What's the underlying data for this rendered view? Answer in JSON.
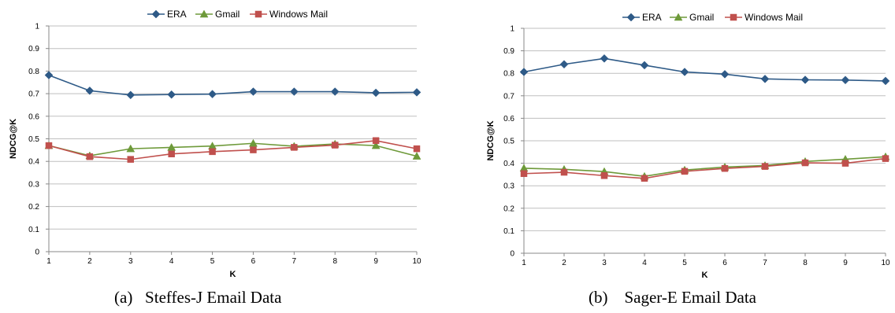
{
  "chart_data": [
    {
      "type": "line",
      "caption": "(a)   Steffes-J Email Data",
      "xlabel": "K",
      "ylabel": "NDCG@K",
      "categories": [
        "1",
        "2",
        "3",
        "4",
        "5",
        "6",
        "7",
        "8",
        "9",
        "10"
      ],
      "ylim": [
        0,
        1
      ],
      "yticks": [
        "0",
        "0.1",
        "0.2",
        "0.3",
        "0.4",
        "0.5",
        "0.6",
        "0.7",
        "0.8",
        "0.9",
        "1"
      ],
      "grid": true,
      "legend_position": "top",
      "series": [
        {
          "name": "ERA",
          "color": "#2E5A87",
          "marker": "diamond",
          "values": [
            0.782,
            0.713,
            0.694,
            0.696,
            0.698,
            0.709,
            0.709,
            0.709,
            0.704,
            0.706
          ]
        },
        {
          "name": "Gmail",
          "color": "#6E9A3A",
          "marker": "triangle",
          "values": [
            0.47,
            0.425,
            0.456,
            0.462,
            0.468,
            0.48,
            0.467,
            0.477,
            0.47,
            0.423
          ]
        },
        {
          "name": "Windows Mail",
          "color": "#C0504D",
          "marker": "square",
          "values": [
            0.47,
            0.421,
            0.409,
            0.433,
            0.443,
            0.451,
            0.462,
            0.472,
            0.492,
            0.456
          ]
        }
      ]
    },
    {
      "type": "line",
      "caption": "(b)    Sager-E Email Data",
      "xlabel": "K",
      "ylabel": "NDCG@K",
      "categories": [
        "1",
        "2",
        "3",
        "4",
        "5",
        "6",
        "7",
        "8",
        "9",
        "10"
      ],
      "ylim": [
        0,
        1
      ],
      "yticks": [
        "0",
        "0.1",
        "0.2",
        "0.3",
        "0.4",
        "0.5",
        "0.6",
        "0.7",
        "0.8",
        "0.9",
        "1"
      ],
      "grid": true,
      "legend_position": "top",
      "series": [
        {
          "name": "ERA",
          "color": "#2E5A87",
          "marker": "diamond",
          "values": [
            0.806,
            0.84,
            0.866,
            0.836,
            0.806,
            0.796,
            0.775,
            0.771,
            0.77,
            0.766
          ]
        },
        {
          "name": "Gmail",
          "color": "#6E9A3A",
          "marker": "triangle",
          "values": [
            0.378,
            0.373,
            0.363,
            0.342,
            0.37,
            0.383,
            0.39,
            0.408,
            0.418,
            0.429
          ]
        },
        {
          "name": "Windows Mail",
          "color": "#C0504D",
          "marker": "square",
          "values": [
            0.354,
            0.36,
            0.345,
            0.333,
            0.364,
            0.377,
            0.386,
            0.402,
            0.4,
            0.421
          ]
        }
      ]
    }
  ]
}
